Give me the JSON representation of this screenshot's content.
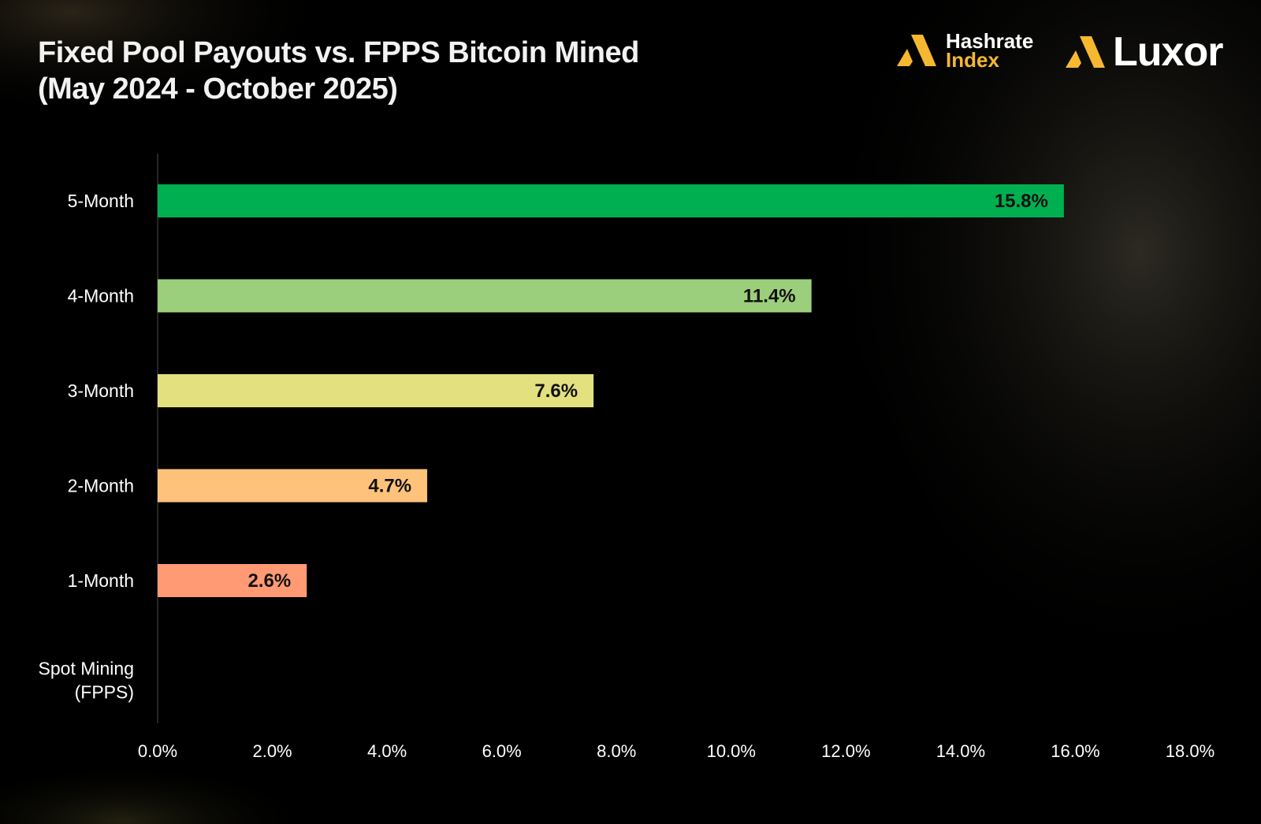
{
  "header": {
    "title_line1": "Fixed Pool Payouts vs. FPPS Bitcoin Mined",
    "title_line2": "(May 2024 - October 2025)"
  },
  "logos": {
    "hashrate_line1": "Hashrate",
    "hashrate_line2": "Index",
    "luxor": "Luxor",
    "accent_color": "#f6b731"
  },
  "chart_data": {
    "type": "bar",
    "orientation": "horizontal",
    "title": "Fixed Pool Payouts vs. FPPS Bitcoin Mined (May 2024 - October 2025)",
    "xlabel": "",
    "ylabel": "",
    "xlim": [
      0,
      18
    ],
    "xticks": [
      "0.0%",
      "2.0%",
      "4.0%",
      "6.0%",
      "8.0%",
      "10.0%",
      "12.0%",
      "14.0%",
      "16.0%",
      "18.0%"
    ],
    "grid": false,
    "legend": "none",
    "categories": [
      {
        "label": [
          "5-Month"
        ],
        "value": 15.8,
        "data_label": "15.8%",
        "color": "#00b050"
      },
      {
        "label": [
          "4-Month"
        ],
        "value": 11.4,
        "data_label": "11.4%",
        "color": "#9ccf7c"
      },
      {
        "label": [
          "3-Month"
        ],
        "value": 7.6,
        "data_label": "7.6%",
        "color": "#e3e17f"
      },
      {
        "label": [
          "2-Month"
        ],
        "value": 4.7,
        "data_label": "4.7%",
        "color": "#ffc27a"
      },
      {
        "label": [
          "1-Month"
        ],
        "value": 2.6,
        "data_label": "2.6%",
        "color": "#ff9a74"
      },
      {
        "label": [
          "Spot Mining",
          "(FPPS)"
        ],
        "value": 0,
        "data_label": "",
        "color": "#888888"
      }
    ]
  }
}
